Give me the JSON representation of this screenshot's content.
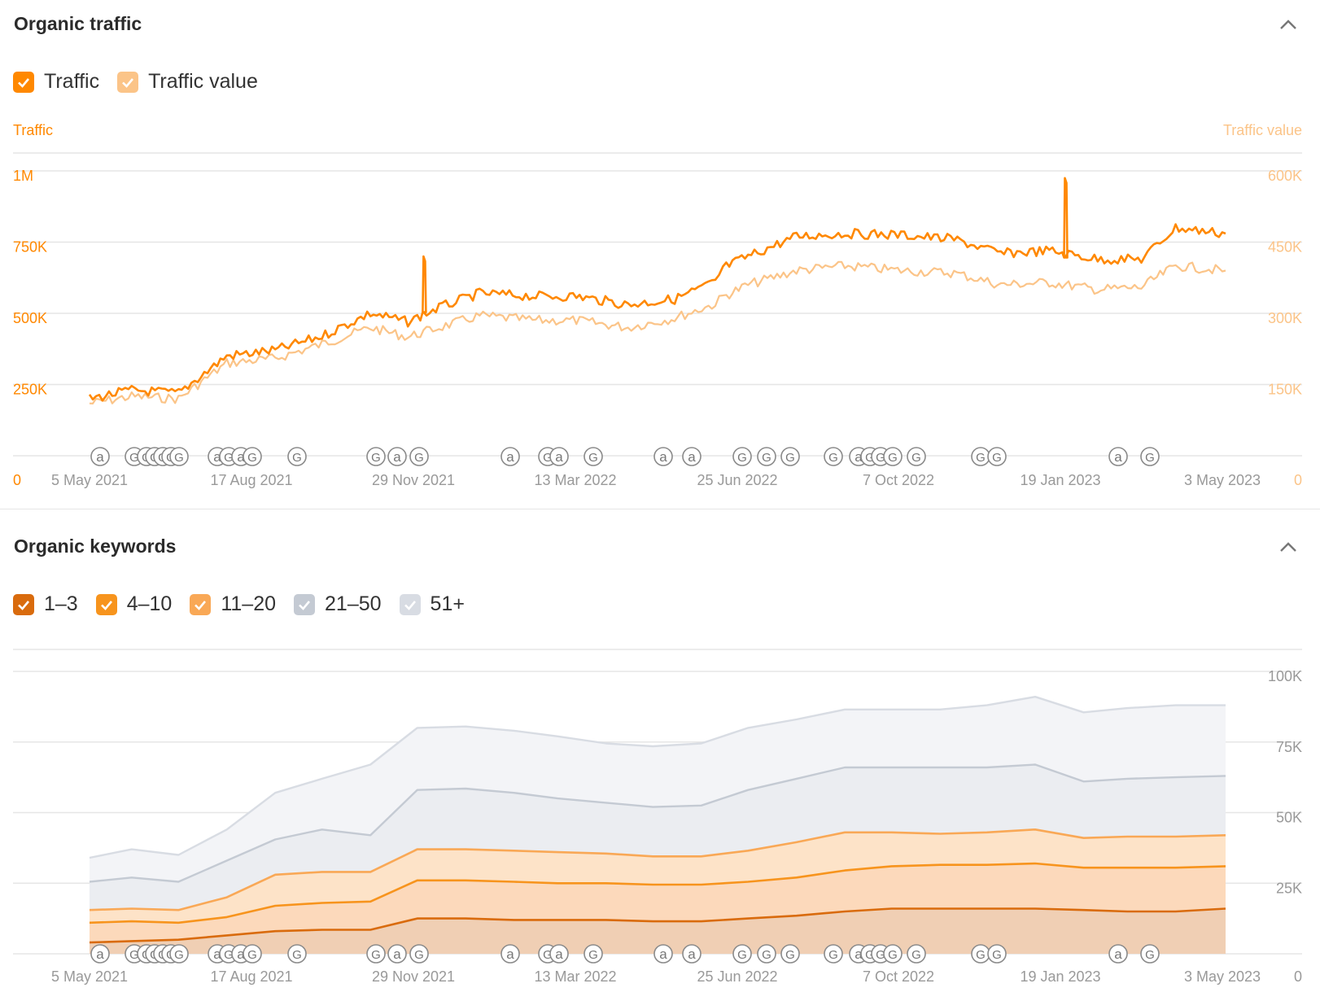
{
  "colors": {
    "traffic": "#ff8800",
    "traffic_value": "#fbc488",
    "kw_1_3": "#d96b0d",
    "kw_4_10": "#f7941d",
    "kw_11_20": "#f9a856",
    "kw_21_50": "#c4cad3",
    "kw_51_plus": "#d8dce3",
    "grid": "#e6e6e6",
    "axis_text": "#999999",
    "event_marker": "#8a8a8a"
  },
  "traffic_section": {
    "title": "Organic traffic",
    "collapse_icon": "chevron-up-icon",
    "legend": [
      {
        "label": "Traffic",
        "checked": true,
        "color": "#ff8800"
      },
      {
        "label": "Traffic value",
        "checked": true,
        "color": "#fbc488"
      }
    ],
    "left_axis_title": "Traffic",
    "right_axis_title": "Traffic value"
  },
  "keywords_section": {
    "title": "Organic keywords",
    "collapse_icon": "chevron-up-icon",
    "legend": [
      {
        "label": "1–3",
        "checked": true,
        "color": "#d96b0d"
      },
      {
        "label": "4–10",
        "checked": true,
        "color": "#f7941d"
      },
      {
        "label": "11–20",
        "checked": true,
        "color": "#f9a856"
      },
      {
        "label": "21–50",
        "checked": true,
        "color": "#c4cad3"
      },
      {
        "label": "51+",
        "checked": true,
        "color": "#d8dce3"
      }
    ]
  },
  "event_markers": [
    "a",
    "G",
    "G",
    "G",
    "G",
    "G",
    "G",
    "a",
    "G",
    "a",
    "G",
    "G",
    "G",
    "a",
    "G",
    "a",
    "G",
    "a",
    "G",
    "a",
    "a",
    "G",
    "G",
    "G",
    "G",
    "a",
    "G",
    "G",
    "G",
    "G",
    "G",
    "G",
    "a",
    "G"
  ],
  "chart_data": [
    {
      "type": "line",
      "x_tick_labels": [
        "5 May 2021",
        "17 Aug 2021",
        "29 Nov 2021",
        "13 Mar 2022",
        "25 Jun 2022",
        "7 Oct 2022",
        "19 Jan 2023",
        "3 May 2023"
      ],
      "y_left": {
        "title": "Traffic",
        "ticks": [
          "0",
          "250K",
          "500K",
          "750K",
          "1M"
        ],
        "ylim": [
          0,
          1000000
        ]
      },
      "y_right": {
        "title": "Traffic value",
        "ticks": [
          "0",
          "150K",
          "300K",
          "450K",
          "600K"
        ],
        "ylim": [
          0,
          600000
        ]
      },
      "grid": true,
      "x": [
        "2021-05-05",
        "2021-06-01",
        "2021-07-01",
        "2021-08-01",
        "2021-09-01",
        "2021-10-01",
        "2021-11-01",
        "2021-11-25",
        "2021-12-15",
        "2022-01-10",
        "2022-02-15",
        "2022-03-13",
        "2022-04-15",
        "2022-05-15",
        "2022-06-10",
        "2022-06-15",
        "2022-07-01",
        "2022-08-01",
        "2022-09-01",
        "2022-10-07",
        "2022-11-10",
        "2022-12-10",
        "2023-01-10",
        "2023-02-10",
        "2023-03-10",
        "2023-04-01",
        "2023-05-03"
      ],
      "series": [
        {
          "name": "Traffic",
          "axis": "left",
          "color": "#ff8800",
          "values": [
            200000,
            230000,
            220000,
            350000,
            370000,
            420000,
            500000,
            470000,
            520000,
            570000,
            560000,
            560000,
            530000,
            550000,
            610000,
            660000,
            700000,
            770000,
            780000,
            775000,
            760000,
            710000,
            720000,
            690000,
            690000,
            800000,
            780000
          ]
        },
        {
          "name": "Traffic value",
          "axis": "right",
          "color": "#fbc488",
          "values": [
            110000,
            125000,
            120000,
            195000,
            205000,
            235000,
            270000,
            250000,
            270000,
            295000,
            285000,
            285000,
            270000,
            290000,
            320000,
            335000,
            360000,
            390000,
            400000,
            390000,
            385000,
            360000,
            365000,
            350000,
            355000,
            400000,
            390000
          ]
        }
      ],
      "spikes": [
        {
          "x": "2021-12-05",
          "series": "Traffic",
          "value": 700000
        },
        {
          "x": "2023-01-20",
          "series": "Traffic",
          "value": 975000
        }
      ]
    },
    {
      "type": "area",
      "stacked": true,
      "x_tick_labels": [
        "5 May 2021",
        "17 Aug 2021",
        "29 Nov 2021",
        "13 Mar 2022",
        "25 Jun 2022",
        "7 Oct 2022",
        "19 Jan 2023",
        "3 May 2023"
      ],
      "y_right": {
        "ticks": [
          "0",
          "25K",
          "50K",
          "75K",
          "100K"
        ],
        "ylim": [
          0,
          100000
        ]
      },
      "grid": true,
      "x": [
        "2021-05-05",
        "2021-06-01",
        "2021-07-01",
        "2021-08-01",
        "2021-09-01",
        "2021-10-01",
        "2021-11-01",
        "2021-12-01",
        "2022-01-01",
        "2022-02-01",
        "2022-03-01",
        "2022-04-01",
        "2022-05-01",
        "2022-06-01",
        "2022-07-01",
        "2022-08-01",
        "2022-09-01",
        "2022-10-01",
        "2022-11-01",
        "2022-12-01",
        "2023-01-01",
        "2023-02-01",
        "2023-03-01",
        "2023-04-01",
        "2023-05-03"
      ],
      "series": [
        {
          "name": "1–3",
          "color": "#d96b0d",
          "values": [
            4000,
            4500,
            5000,
            6500,
            8000,
            8500,
            8500,
            12500,
            12500,
            12000,
            12000,
            12000,
            11500,
            11500,
            12500,
            13500,
            15000,
            16000,
            16000,
            16000,
            16000,
            15500,
            15000,
            15000,
            16000
          ]
        },
        {
          "name": "4–10",
          "color": "#f7941d",
          "values": [
            11000,
            11500,
            11000,
            13000,
            17000,
            18000,
            18500,
            26000,
            26000,
            25500,
            25000,
            25000,
            24500,
            24500,
            25500,
            27000,
            29500,
            31000,
            31500,
            31500,
            32000,
            30500,
            30500,
            30500,
            31000
          ]
        },
        {
          "name": "11–20",
          "color": "#f9a856",
          "values": [
            15500,
            16000,
            15500,
            20000,
            28000,
            29000,
            29000,
            37000,
            37000,
            36500,
            36000,
            35500,
            34500,
            34500,
            36500,
            39500,
            43000,
            43000,
            42500,
            43000,
            44000,
            41000,
            41500,
            41500,
            42000
          ]
        },
        {
          "name": "21–50",
          "color": "#c4cad3",
          "values": [
            25500,
            27000,
            25500,
            33000,
            40500,
            44000,
            42000,
            58000,
            58500,
            57000,
            55000,
            53500,
            52000,
            52500,
            58000,
            62000,
            66000,
            66000,
            66000,
            66000,
            67000,
            61000,
            62000,
            62500,
            63000
          ]
        },
        {
          "name": "51+",
          "color": "#d8dce3",
          "values": [
            34000,
            37000,
            35000,
            44000,
            57000,
            62000,
            67000,
            80000,
            80500,
            79000,
            77000,
            74500,
            73500,
            74500,
            80000,
            83000,
            86500,
            86500,
            86500,
            88000,
            91000,
            85500,
            87000,
            88000,
            88000
          ]
        }
      ]
    }
  ]
}
